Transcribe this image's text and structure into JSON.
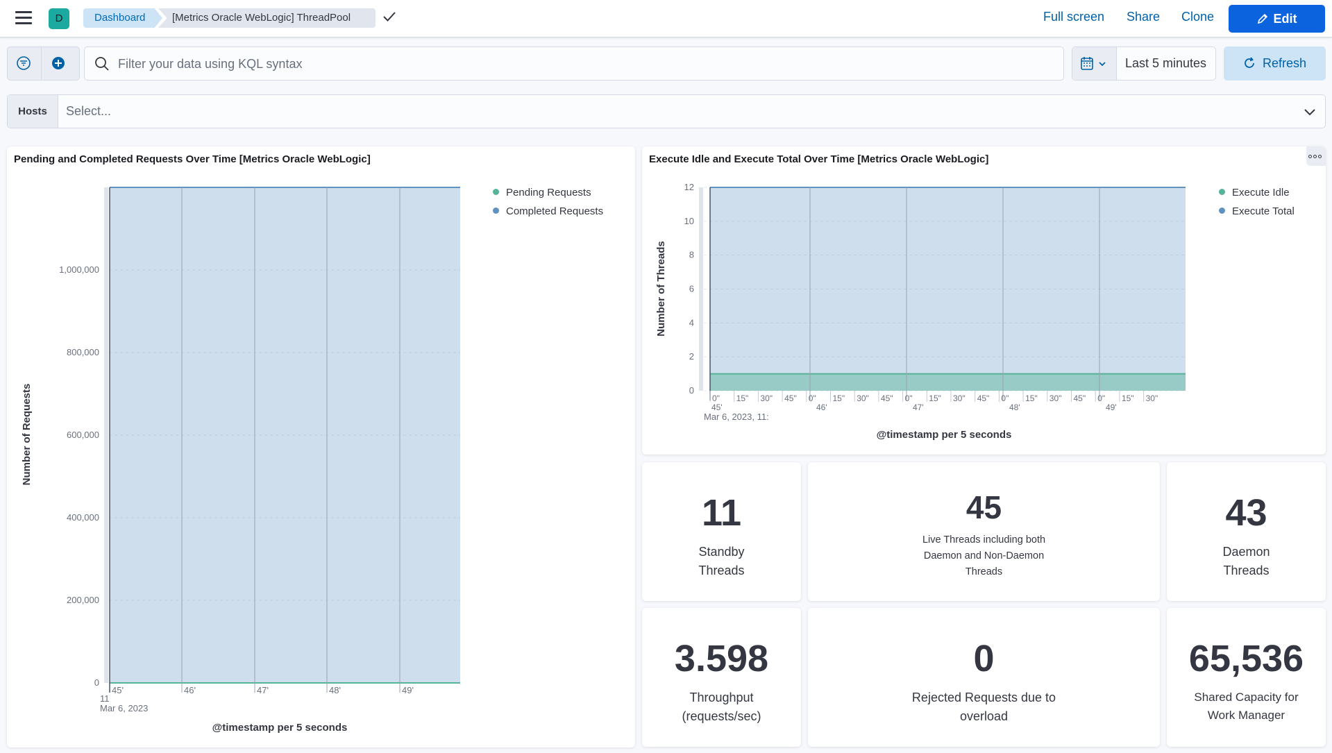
{
  "header": {
    "space_initial": "D",
    "breadcrumb": [
      "Dashboard",
      "[Metrics Oracle WebLogic] ThreadPool"
    ],
    "links": {
      "full_screen": "Full screen",
      "share": "Share",
      "clone": "Clone"
    },
    "edit_label": "Edit"
  },
  "query": {
    "search_placeholder": "Filter your data using KQL syntax",
    "time_range": "Last 5 minutes",
    "refresh_label": "Refresh"
  },
  "controls": {
    "hosts_label": "Hosts",
    "hosts_placeholder": "Select..."
  },
  "panels": {
    "left_title": "Pending and Completed Requests Over Time [Metrics Oracle WebLogic]",
    "right_title": "Execute Idle and Execute Total Over Time [Metrics Oracle WebLogic]"
  },
  "colors": {
    "accent": "#0b64dd",
    "series_green": "#54b399",
    "series_blue": "#6092c0",
    "area_fill": "#cddfee"
  },
  "chart_data": [
    {
      "type": "area",
      "title": "Pending and Completed Requests Over Time [Metrics Oracle WebLogic]",
      "xlabel": "@timestamp per 5 seconds",
      "ylabel": "Number of Requests",
      "ylim": [
        0,
        1200000
      ],
      "yticks": [
        "0",
        "200,000",
        "400,000",
        "600,000",
        "800,000",
        "1,000,000"
      ],
      "x_minor_label": "11",
      "x_date_label": "Mar 6, 2023",
      "x_tick_labels": [
        "45'",
        "46'",
        "47'",
        "48'",
        "49'"
      ],
      "series": [
        {
          "name": "Pending Requests",
          "color": "#54b399",
          "values": [
            0,
            0,
            0,
            0,
            0,
            0
          ]
        },
        {
          "name": "Completed Requests",
          "color": "#6092c0",
          "values": [
            1200000,
            1200000,
            1200000,
            1200000,
            1200000,
            1200000
          ]
        }
      ],
      "legend_position": "top-right",
      "grid": true
    },
    {
      "type": "area",
      "title": "Execute Idle and Execute Total Over Time [Metrics Oracle WebLogic]",
      "xlabel": "@timestamp per 5 seconds",
      "ylabel": "Number of Threads",
      "ylim": [
        0,
        12
      ],
      "yticks": [
        "0",
        "2",
        "4",
        "6",
        "8",
        "10",
        "12"
      ],
      "x_date_label": "Mar 6, 2023, 11:",
      "x_seconds_labels": [
        "0\"",
        "15\"",
        "30\"",
        "45\"",
        "0\"",
        "15\"",
        "30\"",
        "45\"",
        "0\"",
        "15\"",
        "30\"",
        "45\"",
        "0\"",
        "15\"",
        "30\"",
        "45\"",
        "0\"",
        "15\"",
        "30\""
      ],
      "x_minute_labels": [
        "45'",
        "46'",
        "47'",
        "48'",
        "49'"
      ],
      "series": [
        {
          "name": "Execute Idle",
          "color": "#54b399",
          "values": [
            1,
            1,
            1,
            1,
            1,
            1
          ]
        },
        {
          "name": "Execute Total",
          "color": "#6092c0",
          "values": [
            12,
            12,
            12,
            12,
            12,
            12
          ]
        }
      ],
      "legend_position": "top-right",
      "grid": true
    }
  ],
  "metrics": [
    {
      "value": "11",
      "label": [
        "Standby",
        "Threads"
      ]
    },
    {
      "value": "45",
      "label": [
        "Live Threads including both",
        "Daemon and Non-Daemon",
        "Threads"
      ]
    },
    {
      "value": "43",
      "label": [
        "Daemon",
        "Threads"
      ]
    },
    {
      "value": "3.598",
      "label": [
        "Throughput",
        "(requests/sec)"
      ]
    },
    {
      "value": "0",
      "label": [
        "Rejected Requests due to",
        "overload"
      ]
    },
    {
      "value": "65,536",
      "label": [
        "Shared Capacity for",
        "Work Manager"
      ]
    }
  ]
}
